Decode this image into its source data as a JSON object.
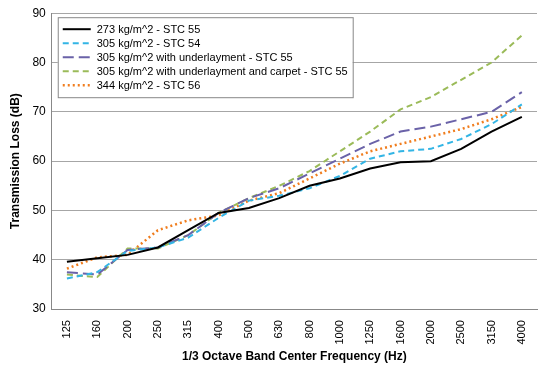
{
  "chart_data": {
    "type": "line",
    "x_label": "1/3 Octave Band Center Frequency (Hz)",
    "y_label": "Transmission Loss (dB)",
    "categories": [
      "125",
      "160",
      "200",
      "250",
      "315",
      "400",
      "500",
      "630",
      "800",
      "1000",
      "1250",
      "1600",
      "2000",
      "2500",
      "3150",
      "4000"
    ],
    "series": [
      {
        "name": "273 kg/m^2 - STC 55",
        "color": "#000000",
        "line_style": "solid",
        "values": [
          39.6,
          40.3,
          41,
          42.5,
          46,
          49.5,
          50.5,
          52.5,
          55,
          56.5,
          58.5,
          59.8,
          60,
          62.5,
          66,
          69
        ]
      },
      {
        "name": "305 kg/m^2 - STC 54",
        "color": "#33b5e5",
        "line_style": "dashed",
        "values": [
          36.2,
          37.5,
          41.8,
          42.5,
          44.5,
          48.5,
          52,
          53,
          54.5,
          57,
          60.5,
          62,
          62.5,
          64.5,
          67.5,
          71.5
        ]
      },
      {
        "name": "305 kg/m^2 with underlayment - STC 55",
        "color": "#6a62a8",
        "line_style": "long_dash",
        "values": [
          37.5,
          37,
          42,
          42.5,
          45,
          49.5,
          52.5,
          54.5,
          57.5,
          60.5,
          63.5,
          66,
          67,
          68.5,
          70,
          74
        ]
      },
      {
        "name": "305 kg/m^2 with underlayment and carpet - STC 55",
        "color": "#9bbb59",
        "line_style": "dashed",
        "values": [
          37,
          36.5,
          42.3,
          42.3,
          45,
          49.5,
          52.5,
          55,
          58,
          62,
          66,
          70.5,
          73,
          76.5,
          80,
          85.5
        ]
      },
      {
        "name": "344 kg/m^2 - STC 56",
        "color": "#f07d1e",
        "line_style": "dotted",
        "values": [
          38.2,
          40.5,
          41,
          46,
          48,
          49,
          52,
          53.5,
          56.5,
          59.5,
          62,
          63.5,
          65,
          66.5,
          68.5,
          71
        ]
      }
    ],
    "ylim": [
      30,
      90
    ],
    "yticks": [
      30,
      40,
      50,
      60,
      70,
      80,
      90
    ],
    "grid": true,
    "legend": "upper left"
  }
}
